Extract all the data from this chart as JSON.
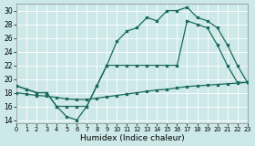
{
  "xlabel": "Humidex (Indice chaleur)",
  "xlim": [
    0,
    23
  ],
  "ylim": [
    13.5,
    31
  ],
  "xticks": [
    0,
    1,
    2,
    3,
    4,
    5,
    6,
    7,
    8,
    9,
    10,
    11,
    12,
    13,
    14,
    15,
    16,
    17,
    18,
    19,
    20,
    21,
    22,
    23
  ],
  "yticks": [
    14,
    16,
    18,
    20,
    22,
    24,
    26,
    28,
    30
  ],
  "bg_color": "#cce8e8",
  "grid_color": "#ffffff",
  "line_color": "#1a6b5a",
  "curve_bottom_x": [
    0,
    1,
    2,
    3,
    4,
    5,
    6,
    7,
    8,
    9,
    10,
    11,
    12,
    13,
    14,
    15,
    16,
    17,
    18,
    19,
    20,
    21,
    22,
    23
  ],
  "curve_bottom_y": [
    18.0,
    17.8,
    17.6,
    17.5,
    17.3,
    17.1,
    17.0,
    17.0,
    17.2,
    17.4,
    17.6,
    17.8,
    18.0,
    18.2,
    18.4,
    18.5,
    18.7,
    18.9,
    19.0,
    19.1,
    19.2,
    19.3,
    19.4,
    19.5
  ],
  "curve_mid_x": [
    0,
    1,
    2,
    3,
    4,
    5,
    6,
    7,
    8,
    9,
    10,
    11,
    12,
    13,
    14,
    15,
    16,
    17,
    18,
    19,
    20,
    21,
    22,
    23
  ],
  "curve_mid_y": [
    19,
    18.5,
    18,
    18,
    16,
    16,
    16,
    16,
    19,
    22,
    22,
    22,
    22,
    22,
    22,
    22,
    22,
    28.5,
    28,
    27.5,
    25,
    22,
    19.5,
    19.5
  ],
  "curve_top_x": [
    0,
    1,
    2,
    3,
    4,
    5,
    6,
    7,
    8,
    9,
    10,
    11,
    12,
    13,
    14,
    15,
    16,
    17,
    18,
    19,
    20,
    21,
    22,
    23
  ],
  "curve_top_y": [
    19,
    18.5,
    18,
    18,
    16,
    14.5,
    14,
    16,
    19,
    22,
    25.5,
    27,
    27.5,
    29,
    28.5,
    30,
    30,
    30.5,
    29,
    28.5,
    27.5,
    25,
    22,
    19.5
  ]
}
